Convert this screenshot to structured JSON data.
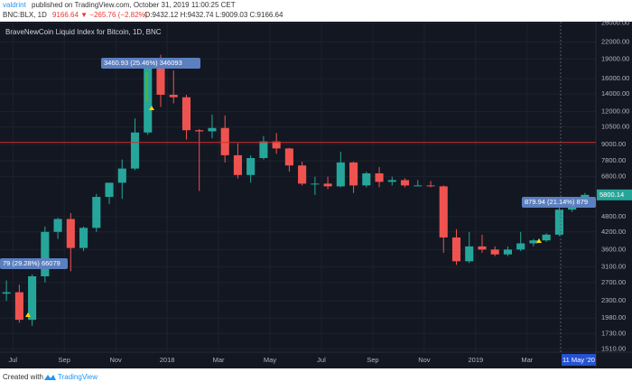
{
  "header": {
    "author": "valdrint",
    "published": " published on TradingView.com, October 31, 2019 11:00:25 CET",
    "symbol": "BNC:BLX, 1D",
    "change": "9166.64 ▼ −265.76 (−2.82%)",
    "ohlc": "O:9432.12 H:9432.74 L:9009.03 C:9166.64"
  },
  "footer": {
    "created": "Created with",
    "brand": "TradingView"
  },
  "chart_data": {
    "type": "candlestick",
    "title": "BraveNewCoin Liquid Index for Bitcoin, 1D, BNC",
    "log_scale": true,
    "grid": true,
    "up_color": "#26a69a",
    "down_color": "#ef5350",
    "categories": [
      null,
      "Jul",
      null,
      null,
      null,
      "Sep",
      null,
      null,
      null,
      "Nov",
      null,
      null,
      null,
      "2018",
      null,
      null,
      null,
      "Mar",
      null,
      null,
      null,
      "May",
      null,
      null,
      null,
      "Jul",
      null,
      null,
      null,
      "Sep",
      null,
      null,
      null,
      "Nov",
      null,
      null,
      null,
      "2019",
      null,
      null,
      null,
      "Mar",
      null,
      null,
      null,
      null
    ],
    "open": [
      2450,
      2480,
      1950,
      2850,
      4200,
      4700,
      3650,
      4350,
      5700,
      6450,
      7300,
      10000,
      17600,
      13900,
      13600,
      10200,
      10100,
      10400,
      8200,
      6900,
      8000,
      9250,
      8700,
      7500,
      6400,
      6400,
      6250,
      7700,
      6300,
      7000,
      6500,
      6600,
      6300,
      6300,
      6250,
      4000,
      3250,
      3700,
      3600,
      3450,
      3600,
      3800,
      3900,
      4100,
      5100,
      5300
    ],
    "high": [
      2750,
      2650,
      2900,
      4400,
      4750,
      4950,
      4400,
      5850,
      6450,
      7900,
      11300,
      17800,
      19700,
      17200,
      13900,
      10300,
      11700,
      11600,
      9100,
      8200,
      9700,
      9950,
      8750,
      7750,
      6800,
      6800,
      8450,
      7750,
      7100,
      7400,
      6800,
      6700,
      6600,
      6550,
      6300,
      4300,
      4200,
      4100,
      3700,
      3700,
      4200,
      3950,
      4150,
      5300,
      5600,
      5900
    ],
    "low": [
      2300,
      1900,
      1850,
      2700,
      3950,
      2980,
      3550,
      4200,
      5350,
      5600,
      7200,
      9800,
      12500,
      12900,
      9400,
      6000,
      9500,
      7700,
      6700,
      6450,
      7900,
      8300,
      7100,
      6300,
      5800,
      6100,
      6200,
      5900,
      6200,
      6200,
      6300,
      6200,
      6250,
      6200,
      3500,
      3150,
      3200,
      3500,
      3400,
      3400,
      3550,
      3700,
      3850,
      4050,
      5000,
      5200
    ],
    "close": [
      2480,
      1950,
      2850,
      4200,
      4700,
      3650,
      4350,
      5700,
      6450,
      7300,
      10000,
      17600,
      13900,
      13600,
      10200,
      10100,
      10400,
      8200,
      6900,
      8000,
      9250,
      8700,
      7500,
      6400,
      6400,
      6250,
      7700,
      6300,
      7000,
      6500,
      6600,
      6300,
      6300,
      6250,
      4000,
      3250,
      3700,
      3600,
      3450,
      3600,
      3800,
      3900,
      4100,
      5100,
      5300,
      5800
    ],
    "ylim": [
      1470,
      26100
    ],
    "yticks": [
      {
        "value": 26000,
        "label": "26000.00"
      },
      {
        "value": 22000,
        "label": "22000.00"
      },
      {
        "value": 19000,
        "label": "19000.00"
      },
      {
        "value": 16000,
        "label": "16000.00"
      },
      {
        "value": 14000,
        "label": "14000.00"
      },
      {
        "value": 12000,
        "label": "12000.00"
      },
      {
        "value": 10500,
        "label": "10500.00"
      },
      {
        "value": 9000,
        "label": "9000.00"
      },
      {
        "value": 7800,
        "label": "7800.00"
      },
      {
        "value": 6800,
        "label": "6800.00"
      },
      {
        "value": 4800,
        "label": "4800.00"
      },
      {
        "value": 4200,
        "label": "4200.00"
      },
      {
        "value": 3600,
        "label": "3600.00"
      },
      {
        "value": 3100,
        "label": "3100.00"
      },
      {
        "value": 2700,
        "label": "2700.00"
      },
      {
        "value": 2300,
        "label": "2300.00"
      },
      {
        "value": 1980,
        "label": "1980.00"
      },
      {
        "value": 1730,
        "label": "1730.00"
      },
      {
        "value": 1510,
        "label": "1510.00"
      }
    ],
    "price_line": 9166.64,
    "last_price": {
      "value": 5800.14,
      "label": "5800.14"
    },
    "cursor_date": "11 May '20",
    "annotations": [
      "3460.93 (25.46%) 346093",
      "79 (29.28%) 66079",
      "879.94 (21.14%) 879"
    ]
  }
}
